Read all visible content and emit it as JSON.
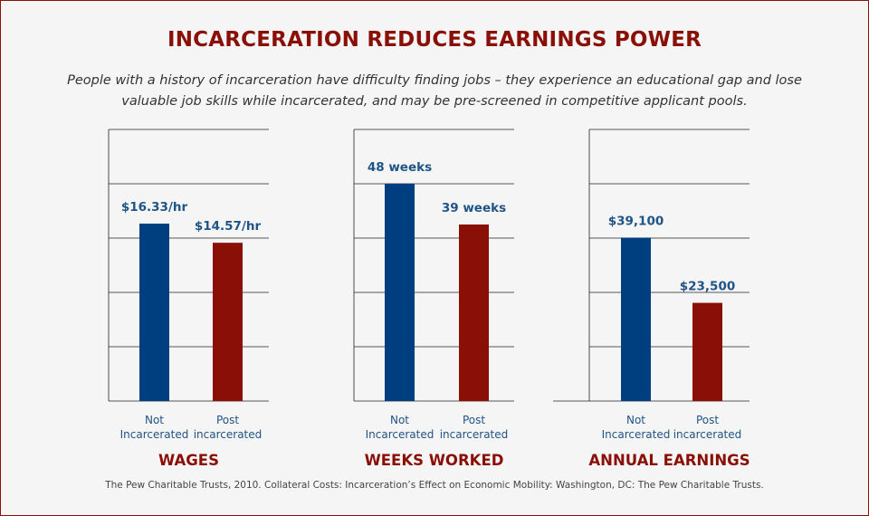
{
  "title": "INCARCERATION REDUCES EARNINGS POWER",
  "subtitle": "People with a history of incarceration have difficulty finding jobs – they experience an educational gap and lose valuable job skills while incarcerated, and may be pre-screened in competitive applicant pools.",
  "source": "The Pew Charitable Trusts, 2010. Collateral Costs: Incarceration’s Effect on Economic Mobility: Washington, DC: The Pew Charitable Trusts.",
  "colors": {
    "title": "#8a0f06",
    "not_incarcerated": "#003f7f",
    "post_incarcerated": "#8a0f06",
    "value_label": "#1f5486",
    "category_label": "#1f5486",
    "grid": "#222222"
  },
  "chart_data": [
    {
      "type": "bar",
      "title": "WAGES",
      "categories": [
        "Not Incarcerated",
        "Post incarcerated"
      ],
      "category_lines": [
        [
          "Not",
          "Incarcerated"
        ],
        [
          "Post",
          "incarcerated"
        ]
      ],
      "values": [
        16.33,
        14.57
      ],
      "value_labels": [
        "$16.33/hr",
        "$14.57/hr"
      ],
      "ylim": [
        0,
        25
      ],
      "grid": true
    },
    {
      "type": "bar",
      "title": "WEEKS WORKED",
      "categories": [
        "Not Incarcerated",
        "Post incarcerated"
      ],
      "category_lines": [
        [
          "Not",
          "Incarcerated"
        ],
        [
          "Post",
          "incarcerated"
        ]
      ],
      "values": [
        48,
        39
      ],
      "value_labels": [
        "48 weeks",
        "39 weeks"
      ],
      "ylim": [
        0,
        60
      ],
      "grid": true
    },
    {
      "type": "bar",
      "title": "ANNUAL EARNINGS",
      "categories": [
        "Not Incarcerated",
        "Post incarcerated"
      ],
      "category_lines": [
        [
          "Not",
          "Incarcerated"
        ],
        [
          "Post",
          "incarcerated"
        ]
      ],
      "values": [
        39100,
        23500
      ],
      "value_labels": [
        "$39,100",
        "$23,500"
      ],
      "ylim": [
        0,
        65000
      ],
      "grid": true
    }
  ]
}
